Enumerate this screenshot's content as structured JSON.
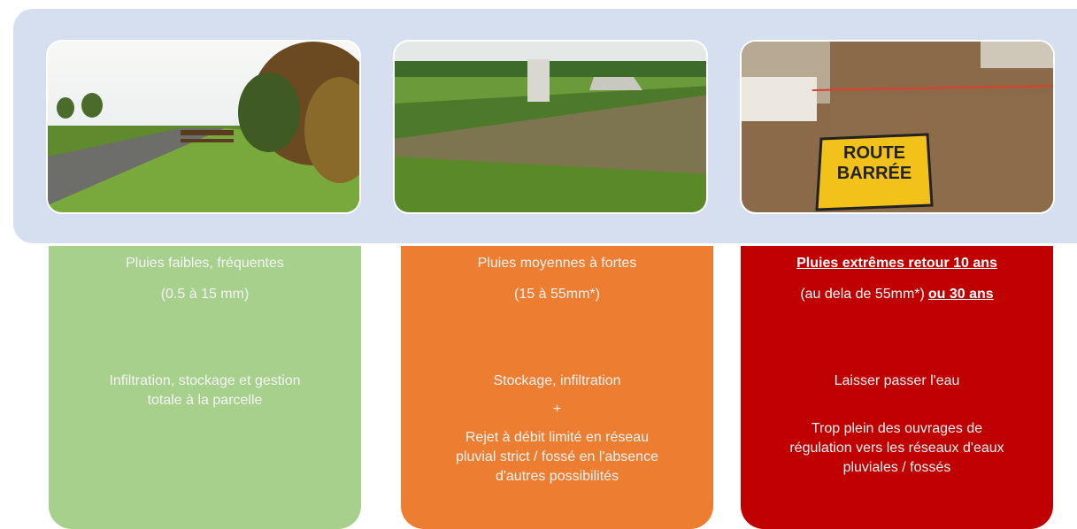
{
  "photos": [
    {
      "kind": "road"
    },
    {
      "kind": "basin"
    },
    {
      "kind": "flood",
      "sign": [
        "ROUTE",
        "BARRÉE"
      ]
    }
  ],
  "panels": [
    {
      "title": "Pluies faibles, fréquentes",
      "range": "(0.5 à 15 mm)",
      "body": [
        [
          "Infiltration, stockage et gestion",
          "totale à la parcelle"
        ]
      ]
    },
    {
      "title": "Pluies moyennes à fortes",
      "range": "(15 à 55mm*)",
      "body": [
        [
          "Stockage, infiltration"
        ],
        [
          "+"
        ],
        [
          "Rejet à débit limité en réseau",
          "pluvial strict / fossé en l'absence",
          "d'autres possibilités"
        ]
      ]
    },
    {
      "title": "Pluies extrêmes  retour 10 ans",
      "range": "(au dela de 55mm*)",
      "range_extra": "ou 30 ans",
      "body": [
        [
          "Laisser passer l'eau"
        ],
        [
          "Trop plein des ouvrages de",
          "régulation vers les réseaux d'eaux",
          "pluviales / fossés"
        ]
      ]
    }
  ]
}
